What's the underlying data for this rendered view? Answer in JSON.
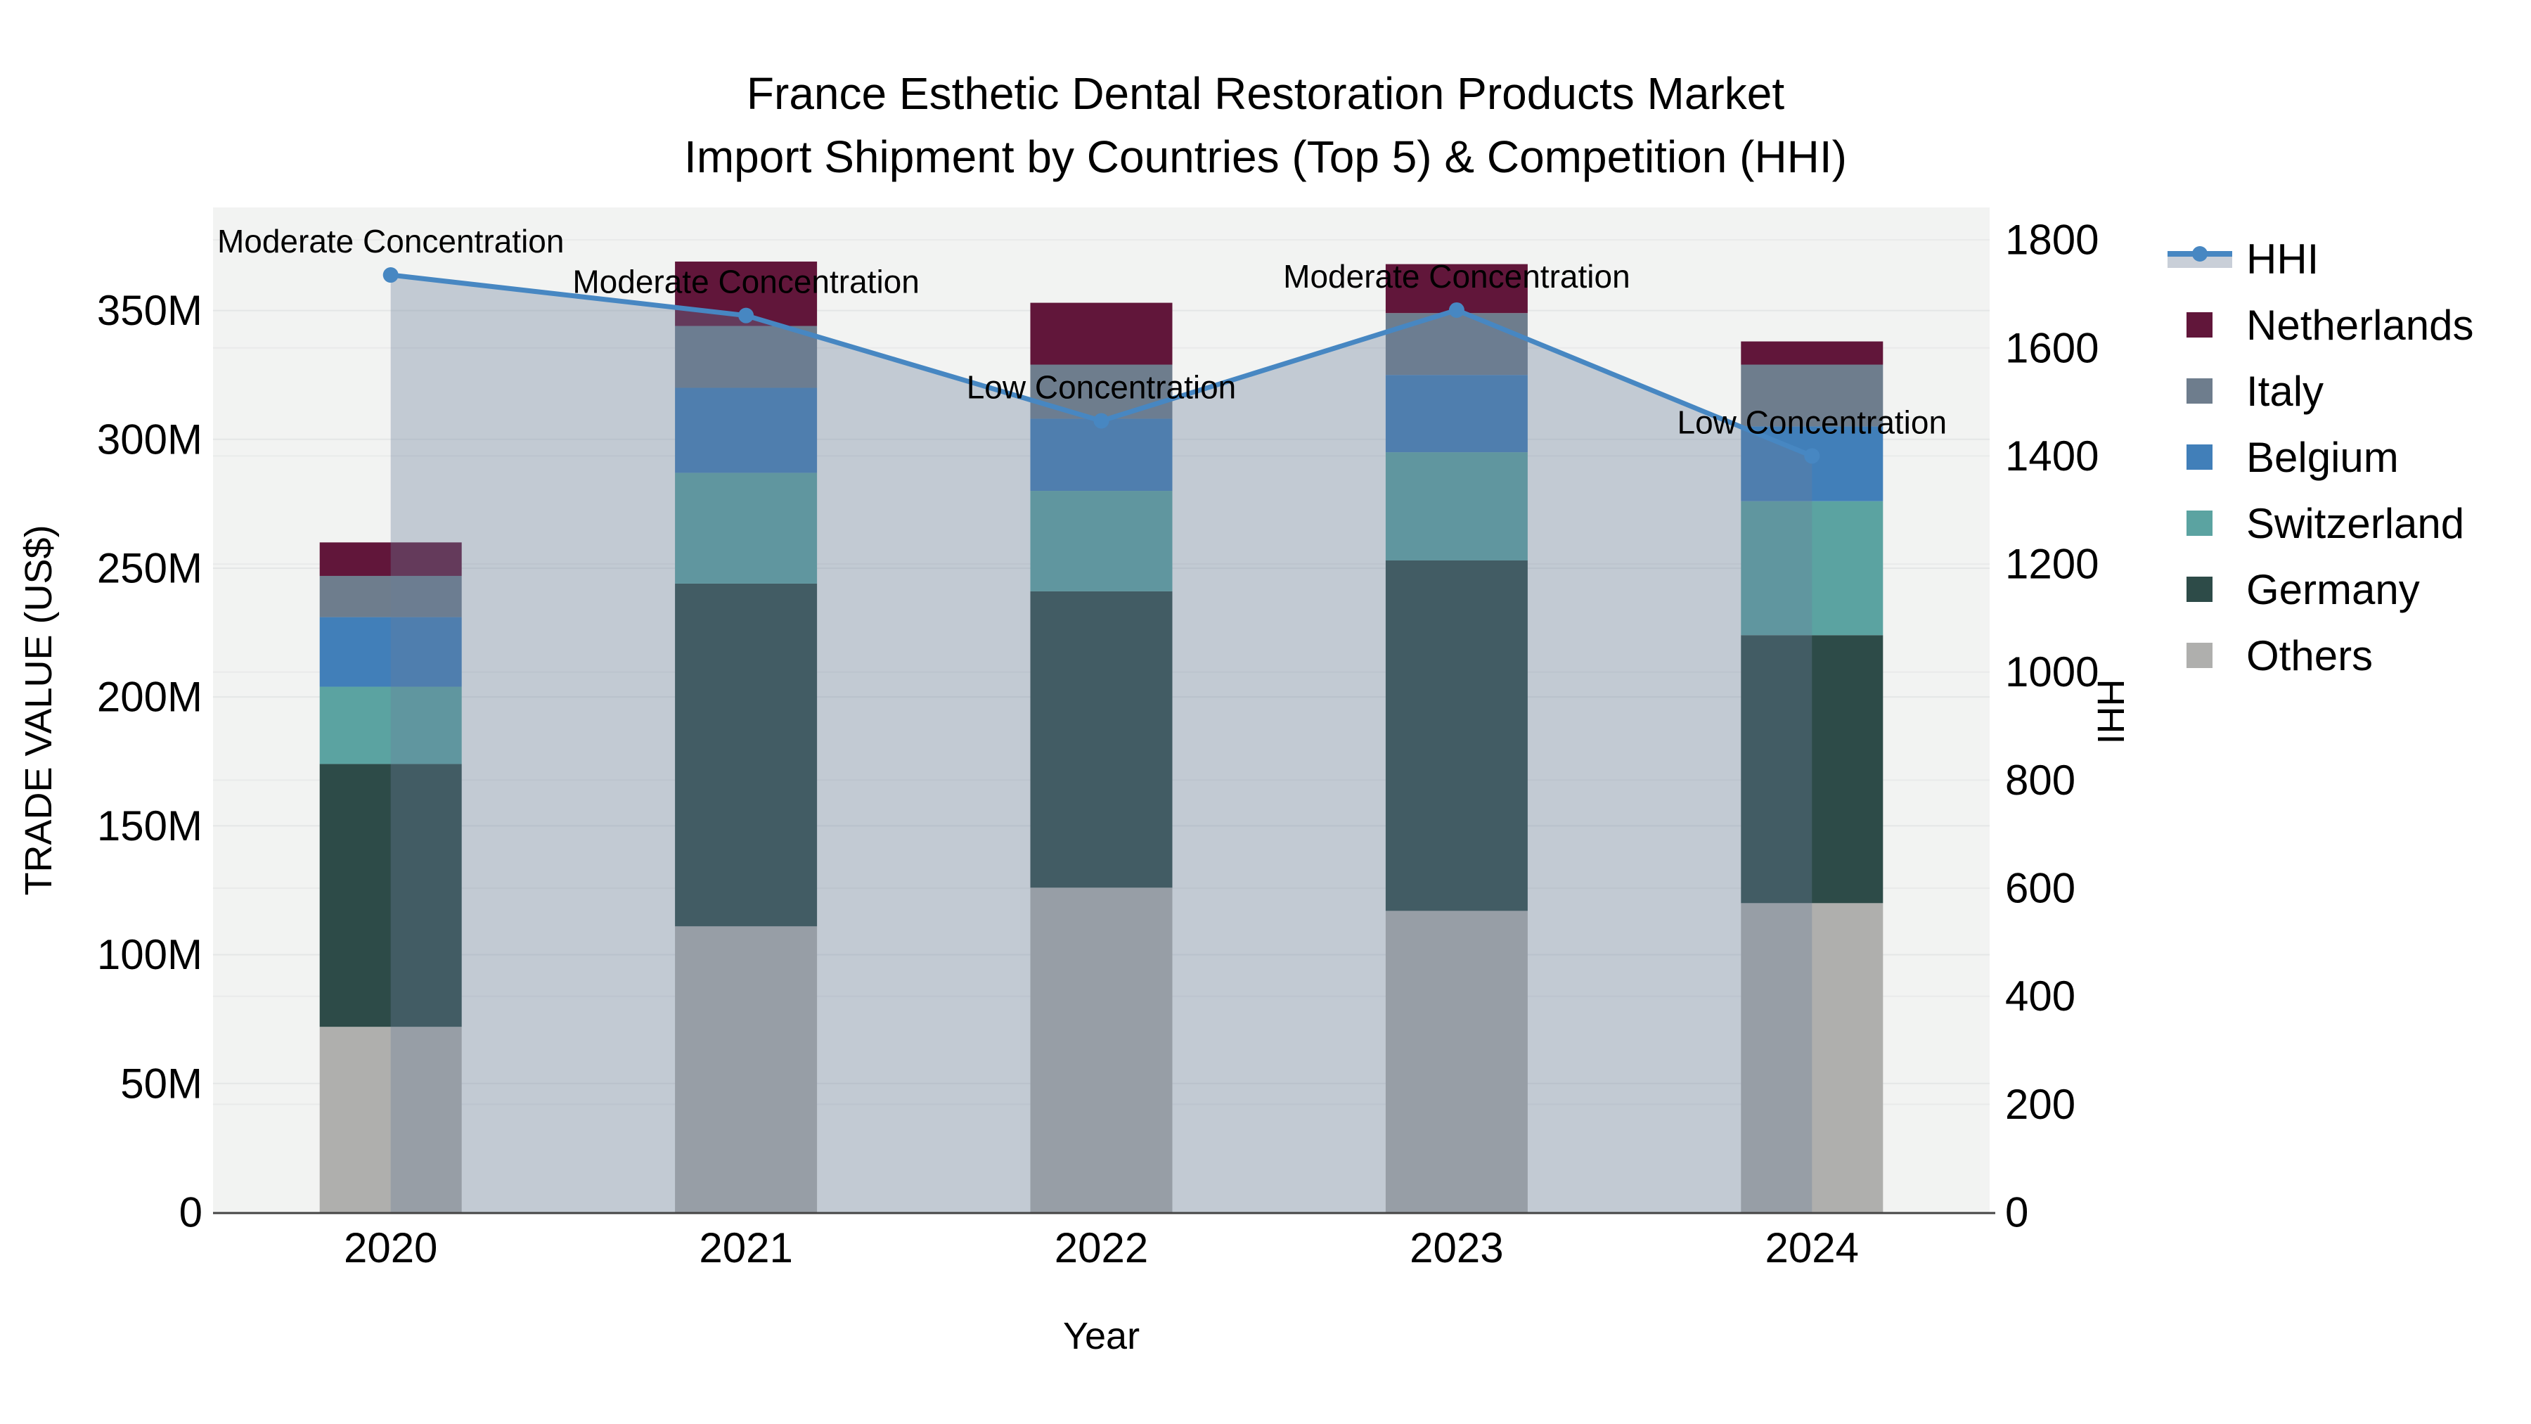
{
  "title": {
    "line1": "France Esthetic Dental Restoration Products Market",
    "line2": "Import Shipment by Countries (Top 5) & Competition (HHI)"
  },
  "axes": {
    "y_left": {
      "title": "TRADE VALUE (US$)",
      "ticks": [
        "0",
        "50M",
        "100M",
        "150M",
        "200M",
        "250M",
        "300M",
        "350M"
      ]
    },
    "y_right": {
      "title": "HHI",
      "ticks": [
        "0",
        "200",
        "400",
        "600",
        "800",
        "1000",
        "1200",
        "1400",
        "1600",
        "1800"
      ]
    },
    "x": {
      "title": "Year",
      "ticks": [
        "2020",
        "2021",
        "2022",
        "2023",
        "2024"
      ]
    }
  },
  "legend": {
    "items": [
      {
        "label": "HHI",
        "type": "line",
        "color": "#4787c2",
        "band": "#c9cfd8"
      },
      {
        "label": "Netherlands",
        "type": "swatch",
        "color": "#61163a"
      },
      {
        "label": "Italy",
        "type": "swatch",
        "color": "#6e7d8d"
      },
      {
        "label": "Belgium",
        "type": "swatch",
        "color": "#417fb9"
      },
      {
        "label": "Switzerland",
        "type": "swatch",
        "color": "#5ba3a1"
      },
      {
        "label": "Germany",
        "type": "swatch",
        "color": "#2d4b48"
      },
      {
        "label": "Others",
        "type": "swatch",
        "color": "#afafad"
      }
    ]
  },
  "colors": {
    "plot_bg": "#f2f3f2",
    "grid_left": "#e4e6e6",
    "grid_right": "#e9eaea",
    "axis_line": "#444444",
    "hhi_line": "#4787c2",
    "hhi_area": "rgba(105,125,155,0.35)",
    "text": "#000000"
  },
  "chart_data": {
    "type": "bar+line",
    "title": "France Esthetic Dental Restoration Products Market — Import Shipment by Countries (Top 5) & Competition (HHI)",
    "xlabel": "Year",
    "ylabel": "TRADE VALUE (US$)",
    "ylabel2": "HHI",
    "unit": "million US$",
    "categories": [
      "2020",
      "2021",
      "2022",
      "2023",
      "2024"
    ],
    "stack_order_bottom_to_top": [
      "Others",
      "Germany",
      "Switzerland",
      "Belgium",
      "Italy",
      "Netherlands"
    ],
    "series": [
      {
        "name": "Others",
        "color": "#afafad",
        "values": [
          72,
          111,
          126,
          117,
          120
        ]
      },
      {
        "name": "Germany",
        "color": "#2d4b48",
        "values": [
          102,
          133,
          115,
          136,
          104
        ]
      },
      {
        "name": "Switzerland",
        "color": "#5ba3a1",
        "values": [
          30,
          43,
          39,
          42,
          52
        ]
      },
      {
        "name": "Belgium",
        "color": "#417fb9",
        "values": [
          27,
          33,
          28,
          30,
          29
        ]
      },
      {
        "name": "Italy",
        "color": "#6e7d8d",
        "values": [
          16,
          24,
          21,
          24,
          24
        ]
      },
      {
        "name": "Netherlands",
        "color": "#61163a",
        "values": [
          13,
          25,
          24,
          19,
          9
        ]
      }
    ],
    "stack_totals": [
      260,
      369,
      353,
      368,
      338
    ],
    "line_series": {
      "name": "HHI",
      "color": "#4787c2",
      "area_fill": "rgba(105,125,155,0.35)",
      "values": [
        1735,
        1660,
        1465,
        1670,
        1400
      ]
    },
    "annotations": [
      {
        "x": "2020",
        "text": "Moderate Concentration"
      },
      {
        "x": "2021",
        "text": "Moderate Concentration"
      },
      {
        "x": "2022",
        "text": "Low Concentration"
      },
      {
        "x": "2023",
        "text": "Moderate Concentration"
      },
      {
        "x": "2024",
        "text": "Low Concentration"
      }
    ],
    "ylim": [
      0,
      390
    ],
    "y2lim": [
      0,
      1860
    ],
    "y_ticks": [
      0,
      50,
      100,
      150,
      200,
      250,
      300,
      350
    ],
    "y2_ticks": [
      0,
      200,
      400,
      600,
      800,
      1000,
      1200,
      1400,
      1600,
      1800
    ],
    "grid": true,
    "legend_position": "right"
  }
}
